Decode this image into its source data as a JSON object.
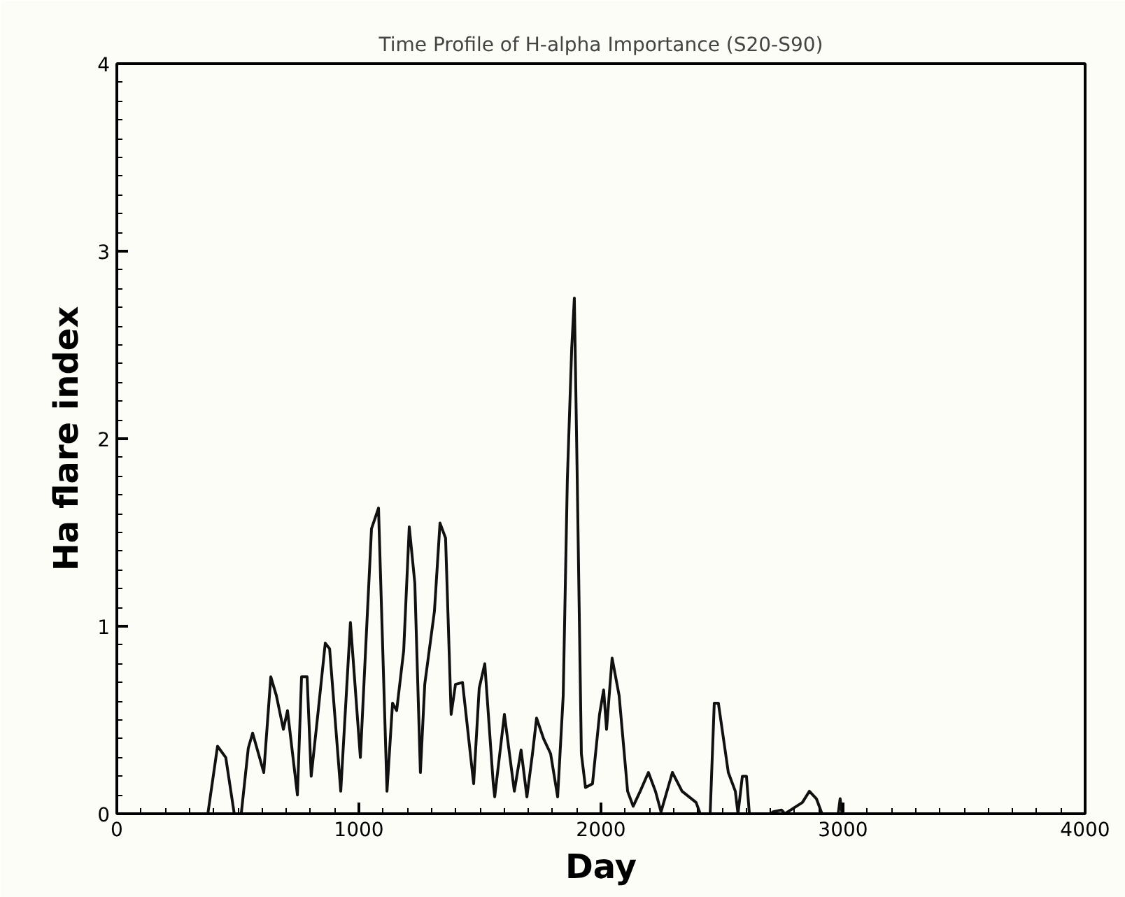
{
  "chart_data": {
    "type": "line",
    "title": "Time Profile of H-alpha Importance (S20-S90)",
    "xlabel": "Day",
    "ylabel": "Ha flare index",
    "xlim": [
      0,
      4000
    ],
    "ylim": [
      0,
      4
    ],
    "xticks": [
      0,
      1000,
      2000,
      3000,
      4000
    ],
    "yticks": [
      0,
      1,
      2,
      3,
      4
    ],
    "grid": false,
    "marker": "none",
    "line_style": "solid",
    "series": [
      {
        "color": "#111111",
        "x": [
          0,
          376,
          416,
          450,
          485,
          514,
          543,
          561,
          607,
          636,
          659,
          688,
          705,
          746,
          763,
          786,
          803,
          832,
          861,
          879,
          925,
          965,
          1006,
          1052,
          1081,
          1116,
          1139,
          1156,
          1185,
          1208,
          1231,
          1254,
          1272,
          1312,
          1335,
          1358,
          1381,
          1399,
          1428,
          1474,
          1497,
          1520,
          1555,
          1561,
          1601,
          1642,
          1670,
          1694,
          1717,
          1734,
          1763,
          1792,
          1821,
          1844,
          1861,
          1879,
          1890,
          1902,
          1919,
          1936,
          1965,
          1994,
          2011,
          2023,
          2046,
          2075,
          2110,
          2133,
          2162,
          2196,
          2225,
          2248,
          2295,
          2335,
          2393,
          2410,
          2451,
          2468,
          2485,
          2526,
          2555,
          2566,
          2584,
          2601,
          2613,
          2700,
          2711,
          2746,
          2760,
          2832,
          2861,
          2890,
          2913,
          2980,
          2988,
          2996,
          3046
        ],
        "values": [
          0,
          0,
          0.36,
          0.3,
          0,
          0,
          0.35,
          0.43,
          0.22,
          0.73,
          0.63,
          0.45,
          0.55,
          0.1,
          0.73,
          0.73,
          0.2,
          0.55,
          0.91,
          0.88,
          0.12,
          1.02,
          0.3,
          1.52,
          1.63,
          0.12,
          0.59,
          0.55,
          0.87,
          1.53,
          1.23,
          0.22,
          0.69,
          1.08,
          1.55,
          1.47,
          0.53,
          0.69,
          0.7,
          0.16,
          0.67,
          0.8,
          0.16,
          0.09,
          0.53,
          0.12,
          0.34,
          0.09,
          0.32,
          0.51,
          0.4,
          0.32,
          0.09,
          0.63,
          1.78,
          2.48,
          2.75,
          1.78,
          0.32,
          0.14,
          0.16,
          0.53,
          0.66,
          0.45,
          0.83,
          0.63,
          0.12,
          0.04,
          0.12,
          0.22,
          0.12,
          0.01,
          0.22,
          0.12,
          0.06,
          0,
          0,
          0.59,
          0.59,
          0.22,
          0.12,
          0,
          0.2,
          0.2,
          0,
          0,
          0.01,
          0.02,
          0,
          0.06,
          0.12,
          0.08,
          0,
          0,
          0.08,
          0,
          0
        ]
      }
    ]
  }
}
